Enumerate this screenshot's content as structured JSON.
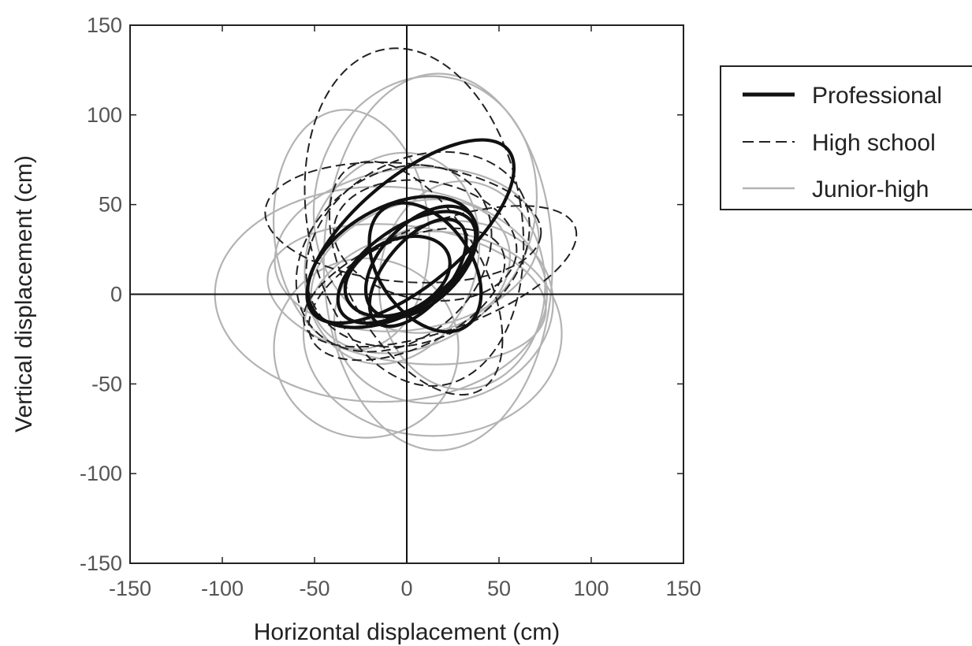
{
  "chart_data": {
    "type": "line",
    "xlabel": "Horizontal displacement (cm)",
    "ylabel": "Vertical displacement (cm)",
    "xlim": [
      -150,
      150
    ],
    "ylim": [
      -150,
      150
    ],
    "xticks": [
      -150,
      -100,
      -50,
      0,
      50,
      100,
      150
    ],
    "yticks": [
      -150,
      -100,
      -50,
      0,
      50,
      100,
      150
    ],
    "grid": false,
    "reference_lines": {
      "x": 0,
      "y": 0
    },
    "legend_position": "outside-right-top",
    "line_styles": {
      "Professional": "solid-thick",
      "High school": "dashed",
      "Junior-high": "solid-light"
    },
    "colors": {
      "Professional": "#111111",
      "High school": "#222222",
      "Junior-high": "#b3b3b3"
    },
    "series": [
      {
        "name": "Junior-high",
        "loops": [
          {
            "cx": -14,
            "cy": 0,
            "rx": 90,
            "ry": 60,
            "rot": 0
          },
          {
            "cx": 10,
            "cy": 50,
            "rx": 60,
            "ry": 72,
            "rot": -12
          },
          {
            "cx": 17,
            "cy": 18,
            "rx": 62,
            "ry": 105,
            "rot": 0
          },
          {
            "cx": -30,
            "cy": 36,
            "rx": 42,
            "ry": 67,
            "rot": 5
          },
          {
            "cx": 0,
            "cy": 25,
            "rx": 72,
            "ry": 45,
            "rot": 8
          },
          {
            "cx": 14,
            "cy": -22,
            "rx": 70,
            "ry": 57,
            "rot": 0
          },
          {
            "cx": 20,
            "cy": -10,
            "rx": 60,
            "ry": 50,
            "rot": 15
          },
          {
            "cx": 0,
            "cy": 0,
            "rx": 76,
            "ry": 38,
            "rot": -8
          },
          {
            "cx": -22,
            "cy": -30,
            "rx": 50,
            "ry": 50,
            "rot": 0
          },
          {
            "cx": 2,
            "cy": 10,
            "rx": 56,
            "ry": 40,
            "rot": 22
          },
          {
            "cx": -8,
            "cy": 20,
            "rx": 46,
            "ry": 60,
            "rot": -18
          },
          {
            "cx": 30,
            "cy": 5,
            "rx": 45,
            "ry": 58,
            "rot": 0
          }
        ]
      },
      {
        "name": "High school",
        "loops": [
          {
            "cx": 4,
            "cy": 43,
            "rx": 58,
            "ry": 95,
            "rot": 10
          },
          {
            "cx": -2,
            "cy": 40,
            "rx": 75,
            "ry": 33,
            "rot": -5
          },
          {
            "cx": 18,
            "cy": 10,
            "rx": 78,
            "ry": 30,
            "rot": 20
          },
          {
            "cx": 6,
            "cy": 25,
            "rx": 64,
            "ry": 50,
            "rot": 30
          },
          {
            "cx": -7,
            "cy": 20,
            "rx": 58,
            "ry": 46,
            "rot": 40
          },
          {
            "cx": 5,
            "cy": 9,
            "rx": 36,
            "ry": 72,
            "rot": 30
          },
          {
            "cx": 10,
            "cy": 30,
            "rx": 50,
            "ry": 33,
            "rot": -10
          },
          {
            "cx": 0,
            "cy": 0,
            "rx": 57,
            "ry": 30,
            "rot": 25
          }
        ]
      },
      {
        "name": "Professional",
        "loops": [
          {
            "cx": 2,
            "cy": 35,
            "rx": 69,
            "ry": 30,
            "rot": 40
          },
          {
            "cx": -8,
            "cy": 18,
            "rx": 50,
            "ry": 30,
            "rot": 30
          },
          {
            "cx": 0,
            "cy": 15,
            "rx": 43,
            "ry": 22,
            "rot": 35
          },
          {
            "cx": 8,
            "cy": 18,
            "rx": 37,
            "ry": 22,
            "rot": 45
          },
          {
            "cx": 6,
            "cy": 12,
            "rx": 35,
            "ry": 18,
            "rot": 50
          },
          {
            "cx": 10,
            "cy": 15,
            "rx": 25,
            "ry": 40,
            "rot": 35
          },
          {
            "cx": -5,
            "cy": 10,
            "rx": 30,
            "ry": 20,
            "rot": 25
          }
        ]
      }
    ],
    "legend": [
      {
        "label": "Professional",
        "style": "solid-thick"
      },
      {
        "label": "High school",
        "style": "dashed"
      },
      {
        "label": "Junior-high",
        "style": "solid-light"
      }
    ]
  }
}
